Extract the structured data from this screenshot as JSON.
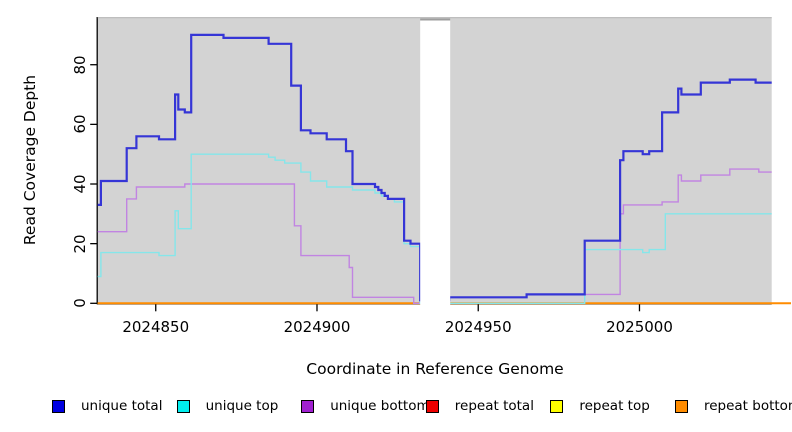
{
  "figure": {
    "background_color": "#FFFFFF"
  },
  "chart_data": {
    "type": "line",
    "step_interpolation": true,
    "title": "",
    "xlabel": "Coordinate in Reference Genome",
    "ylabel": "Read Coverage Depth",
    "xlim": [
      2024832,
      2025041
    ],
    "ylim": [
      0,
      96
    ],
    "grid": false,
    "plot_background_color": "#D3D3D3",
    "top_edge_color": "#BBBBBB",
    "axis_color": "#000000",
    "xticks": {
      "values": [
        2024850,
        2024900,
        2024950,
        2025000
      ],
      "labels": [
        "2024850",
        "2024900",
        "2024950",
        "2025000"
      ]
    },
    "yticks": {
      "values": [
        0,
        20,
        40,
        60,
        80
      ],
      "labels": [
        "0",
        "20",
        "40",
        "60",
        "80"
      ]
    },
    "gap_region": {
      "x_start": 2024932,
      "x_end": 2024941.3,
      "color": "#FFFFFF",
      "top_border_color": "#9E9E9E"
    },
    "draw_order": [
      "repeat total",
      "repeat top",
      "repeat bottom",
      "unique bottom",
      "unique top",
      "unique total"
    ],
    "series": [
      {
        "name": "unique total",
        "color": "#3535D6",
        "line_width": 2.2,
        "x_end": 2025041,
        "points": [
          [
            2024832,
            33
          ],
          [
            2024833,
            41
          ],
          [
            2024841,
            52
          ],
          [
            2024844,
            56
          ],
          [
            2024851,
            55
          ],
          [
            2024856,
            70
          ],
          [
            2024857,
            65
          ],
          [
            2024859,
            64
          ],
          [
            2024861,
            90
          ],
          [
            2024871,
            89
          ],
          [
            2024885,
            87
          ],
          [
            2024892,
            73
          ],
          [
            2024895,
            58
          ],
          [
            2024898,
            57
          ],
          [
            2024903,
            55
          ],
          [
            2024909,
            51
          ],
          [
            2024911,
            40
          ],
          [
            2024918,
            39
          ],
          [
            2024919,
            38
          ],
          [
            2024920,
            37
          ],
          [
            2024921,
            36
          ],
          [
            2024922,
            35
          ],
          [
            2024927,
            21
          ],
          [
            2024929,
            20
          ],
          [
            2024932,
            1
          ],
          [
            2024941,
            2
          ],
          [
            2024965,
            3
          ],
          [
            2024983,
            21
          ],
          [
            2024994,
            48
          ],
          [
            2024995,
            51
          ],
          [
            2025001,
            50
          ],
          [
            2025003,
            51
          ],
          [
            2025007,
            64
          ],
          [
            2025012,
            72
          ],
          [
            2025013,
            70
          ],
          [
            2025019,
            74
          ],
          [
            2025028,
            75
          ],
          [
            2025036,
            74
          ]
        ]
      },
      {
        "name": "unique top",
        "color": "#85E6EA",
        "line_width": 1.4,
        "x_end": 2025041,
        "points": [
          [
            2024832,
            9
          ],
          [
            2024833,
            17
          ],
          [
            2024851,
            16
          ],
          [
            2024856,
            31
          ],
          [
            2024857,
            25
          ],
          [
            2024861,
            50
          ],
          [
            2024885,
            49
          ],
          [
            2024887,
            48
          ],
          [
            2024890,
            47
          ],
          [
            2024895,
            44
          ],
          [
            2024898,
            41
          ],
          [
            2024903,
            39
          ],
          [
            2024911,
            38
          ],
          [
            2024918,
            37
          ],
          [
            2024920,
            36
          ],
          [
            2024922,
            35
          ],
          [
            2024924,
            34
          ],
          [
            2024927,
            20
          ],
          [
            2024929,
            19
          ],
          [
            2024932,
            0
          ],
          [
            2024983,
            18
          ],
          [
            2025001,
            17
          ],
          [
            2025003,
            18
          ],
          [
            2025008,
            30
          ]
        ]
      },
      {
        "name": "unique bottom",
        "color": "#C184E2",
        "line_width": 1.4,
        "x_end": 2025041,
        "points": [
          [
            2024832,
            24
          ],
          [
            2024841,
            35
          ],
          [
            2024844,
            39
          ],
          [
            2024859,
            40
          ],
          [
            2024893,
            26
          ],
          [
            2024895,
            16
          ],
          [
            2024910,
            12
          ],
          [
            2024911,
            2
          ],
          [
            2024930,
            0
          ],
          [
            2024941,
            2
          ],
          [
            2024965,
            3
          ],
          [
            2024994,
            30
          ],
          [
            2024995,
            33
          ],
          [
            2025007,
            34
          ],
          [
            2025012,
            43
          ],
          [
            2025013,
            41
          ],
          [
            2025019,
            43
          ],
          [
            2025028,
            45
          ],
          [
            2025037,
            44
          ]
        ]
      },
      {
        "name": "repeat total",
        "color": "#DD0000",
        "line_width": 1.4,
        "x_end": 2025047,
        "points": [
          [
            2024832,
            0
          ]
        ]
      },
      {
        "name": "repeat top",
        "color": "#FFEE00",
        "line_width": 1.4,
        "x_end": 2025047,
        "points": [
          [
            2024832,
            0
          ]
        ]
      },
      {
        "name": "repeat bottom",
        "color": "#FF8C00",
        "line_width": 2.0,
        "x_end": 2025047,
        "points": [
          [
            2024832,
            0
          ]
        ]
      }
    ]
  },
  "legend": {
    "position": "bottom",
    "items": [
      {
        "label": "unique total",
        "fill": "#0000E0",
        "border": "#000000"
      },
      {
        "label": "unique top",
        "fill": "#00EEEE",
        "border": "#000000"
      },
      {
        "label": "unique bottom",
        "fill": "#A020D0",
        "border": "#000000"
      },
      {
        "label": "repeat total",
        "fill": "#EE0000",
        "border": "#000000"
      },
      {
        "label": "repeat top",
        "fill": "#FFFF00",
        "border": "#000000"
      },
      {
        "label": "repeat bottom",
        "fill": "#FF8C00",
        "border": "#000000"
      }
    ]
  }
}
